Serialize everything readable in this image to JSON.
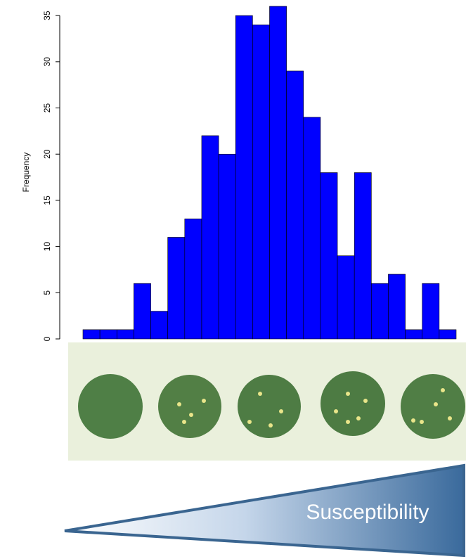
{
  "chart_data": {
    "type": "bar",
    "y_label": "Frequency",
    "annotation": "Susceptibility",
    "categories": [
      null,
      null,
      null,
      null,
      null,
      null,
      null,
      null,
      null,
      null,
      null,
      null,
      null,
      null,
      null,
      null,
      null,
      null,
      null,
      null,
      null,
      null
    ],
    "values": [
      1,
      1,
      1,
      6,
      3,
      11,
      13,
      22,
      20,
      35,
      34,
      36,
      29,
      24,
      18,
      9,
      18,
      6,
      7,
      1,
      6,
      1
    ],
    "color": "#0000ff",
    "ylim": [
      0,
      36
    ],
    "yticks": [
      0,
      5,
      10,
      15,
      20,
      25,
      30,
      35
    ],
    "grid": false
  }
}
